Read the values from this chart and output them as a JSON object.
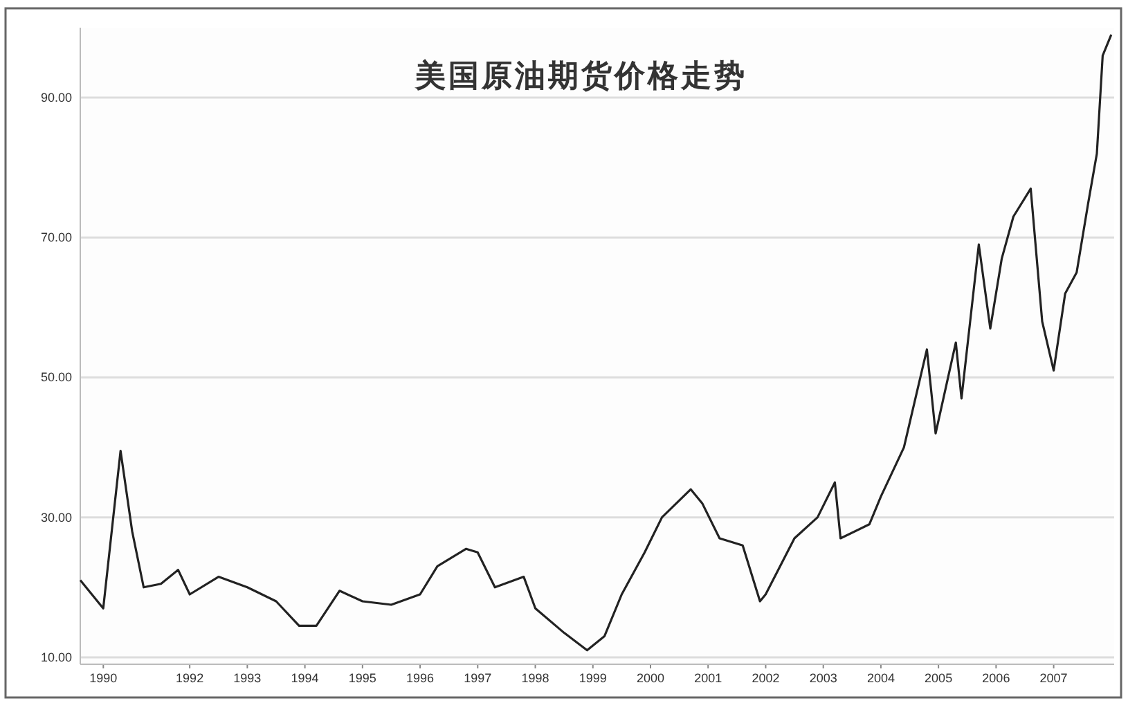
{
  "chart_data": {
    "type": "line",
    "title": "美国原油期货价格走势",
    "x": [
      1990.1,
      1990.5,
      1990.8,
      1991.0,
      1991.2,
      1991.5,
      1991.8,
      1992.0,
      1992.5,
      1993.0,
      1993.5,
      1993.9,
      1994.2,
      1994.6,
      1995.0,
      1995.5,
      1996.0,
      1996.3,
      1996.8,
      1997.0,
      1997.3,
      1997.8,
      1998.0,
      1998.5,
      1998.9,
      1999.2,
      1999.5,
      1999.9,
      2000.2,
      2000.7,
      2000.9,
      2001.2,
      2001.6,
      2001.9,
      2002.0,
      2002.5,
      2002.9,
      2003.2,
      2003.3,
      2003.8,
      2004.0,
      2004.4,
      2004.8,
      2004.95,
      2005.3,
      2005.4,
      2005.7,
      2005.9,
      2006.1,
      2006.3,
      2006.6,
      2006.8,
      2007.0,
      2007.2,
      2007.4,
      2007.6,
      2007.75,
      2007.85,
      2008.0
    ],
    "values": [
      21,
      17,
      39.5,
      28,
      20,
      20.5,
      22.5,
      19,
      21.5,
      20,
      18,
      14.5,
      14.5,
      19.5,
      18,
      17.5,
      19,
      23,
      25.5,
      25,
      20,
      21.5,
      17,
      13.5,
      11,
      13,
      19,
      25,
      30,
      34,
      32,
      27,
      26,
      18,
      19,
      27,
      30,
      35,
      27,
      29,
      33,
      40,
      54,
      42,
      55,
      47,
      69,
      57,
      67,
      73,
      77,
      58,
      51,
      62,
      65,
      75,
      82,
      96,
      99
    ],
    "color": "#222222",
    "xlim": [
      1990.1,
      2008.05
    ],
    "ylim": [
      9,
      100
    ],
    "xticks": [
      {
        "value": 1990.5,
        "label": "1990"
      },
      1992,
      1993,
      1994,
      1995,
      1996,
      1997,
      1998,
      1999,
      2000,
      2001,
      2002,
      2003,
      2004,
      2005,
      2006,
      2007
    ],
    "yticks": [
      {
        "value": 10,
        "label": "10.00"
      },
      {
        "value": 30,
        "label": "30.00"
      },
      {
        "value": 50,
        "label": "50.00"
      },
      {
        "value": 70,
        "label": "70.00"
      },
      {
        "value": 90,
        "label": "90.00"
      }
    ],
    "grid": "y"
  }
}
